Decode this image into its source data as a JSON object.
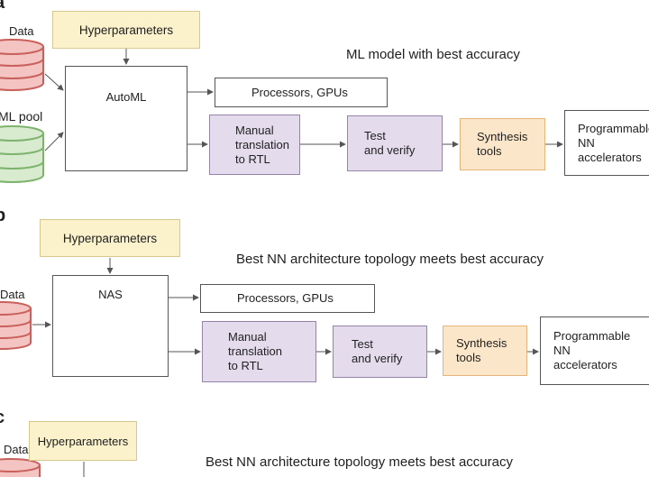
{
  "colors": {
    "hyperparameters": "#fbf2cc",
    "manual": "#e4dcec",
    "synthesis": "#fce6c9",
    "data_db": "#f3c4c1",
    "pool_db": "#d8ebcf"
  },
  "panel_a": {
    "label": "a",
    "data": "Data",
    "ml_pool": "ML pool",
    "hyperparameters": "Hyperparameters",
    "engine": "AutoML",
    "title": "ML model with best accuracy",
    "processors": "Processors, GPUs",
    "manual": [
      "Manual",
      "translation",
      "to RTL"
    ],
    "test": [
      "Test",
      "and verify"
    ],
    "synthesis": [
      "Synthesis",
      "tools"
    ],
    "accelerators": [
      "Programmable",
      "NN",
      "accelerators"
    ]
  },
  "panel_b": {
    "label": "b",
    "data": "Data",
    "hyperparameters": "Hyperparameters",
    "engine": "NAS",
    "title": "Best NN architecture topology meets best accuracy",
    "processors": "Processors, GPUs",
    "manual": [
      "Manual",
      "translation",
      "to RTL"
    ],
    "test": [
      "Test",
      "and verify"
    ],
    "synthesis": [
      "Synthesis",
      "tools"
    ],
    "accelerators": [
      "Programmable",
      "NN",
      "accelerators"
    ]
  },
  "panel_c": {
    "label": "c",
    "data": "Data",
    "hyperparameters": "Hyperparameters",
    "title": "Best NN architecture topology meets best accuracy"
  }
}
